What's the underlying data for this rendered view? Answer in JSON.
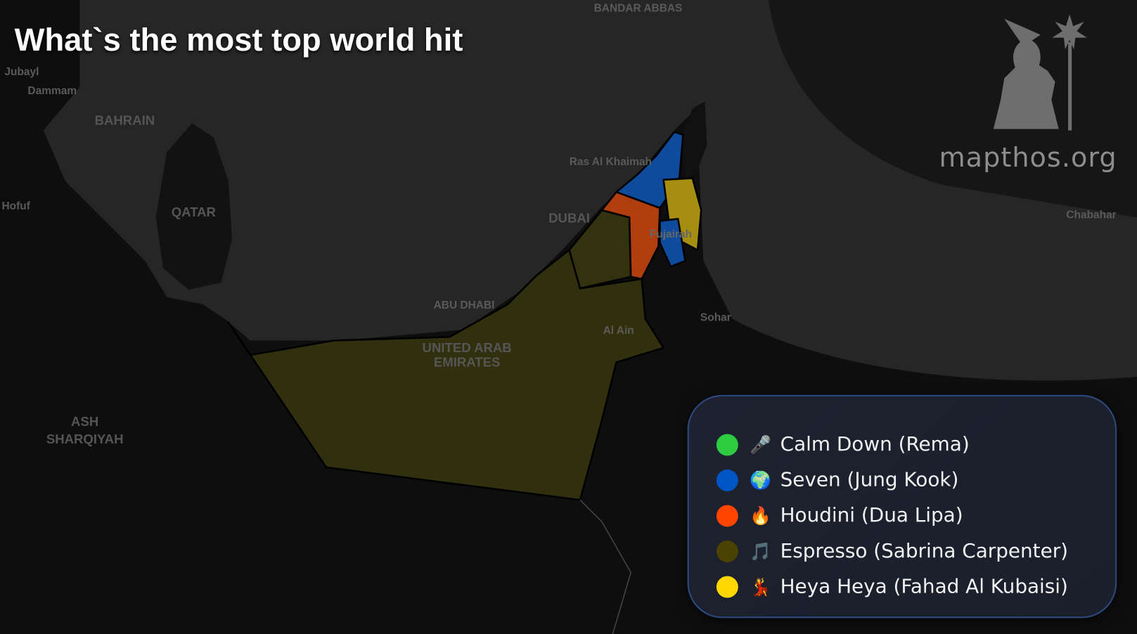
{
  "title": "What`s the most top world hit",
  "brand": "mapthos.org",
  "place_labels": {
    "bandar_abbas": "BANDAR ABBAS",
    "jubayl": "Jubayl",
    "dammam": "Dammam",
    "bahrain": "BAHRAIN",
    "qatar": "QATAR",
    "hofuf": "Hofuf",
    "ras_al_khaimah": "Ras Al Khaimah",
    "dubai": "DUBAI",
    "fujairah": "Fujairah",
    "abu_dhabi": "ABU DHABI",
    "al_ain": "Al Ain",
    "uae_1": "UNITED ARAB",
    "uae_2": "EMIRATES",
    "sohar": "Sohar",
    "ash_sharqiyah_1": "ASH",
    "ash_sharqiyah_2": "SHARQIYAH",
    "chabahar": "Chabahar"
  },
  "legend": [
    {
      "label": "Calm Down (Rema)",
      "color": "#2ecc40",
      "icon": "microphone-icon",
      "glyph": "🎤"
    },
    {
      "label": "Seven (Jung Kook)",
      "color": "#0055c4",
      "icon": "globe-icon",
      "glyph": "🌍"
    },
    {
      "label": "Houdini (Dua Lipa)",
      "color": "#ff4500",
      "icon": "fire-icon",
      "glyph": "🔥"
    },
    {
      "label": "Espresso (Sabrina Carpenter)",
      "color": "#4a4200",
      "icon": "music-note-icon",
      "glyph": "🎵"
    },
    {
      "label": "Heya Heya (Fahad Al Kubaisi)",
      "color": "#ffd700",
      "icon": "dancer-icon",
      "glyph": "💃"
    }
  ],
  "regions": {
    "abu_dhabi": "Espresso (Sabrina Carpenter)",
    "dubai": "Espresso (Sabrina Carpenter)",
    "sharjah": "Houdini (Dua Lipa)",
    "ras_al_khaimah": "Seven (Jung Kook)",
    "fujairah_north": "Heya Heya (Fahad Al Kubaisi)",
    "fujairah_south": "Seven (Jung Kook)"
  }
}
